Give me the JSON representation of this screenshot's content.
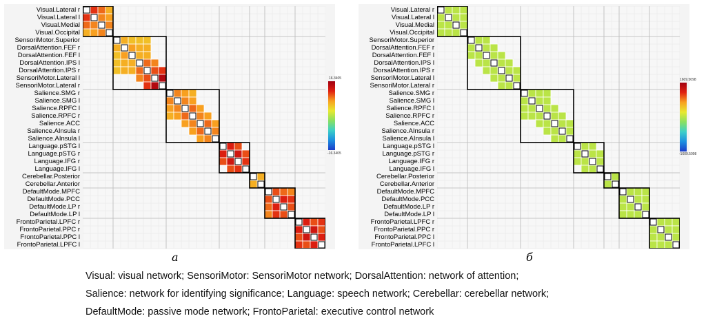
{
  "chart_data": [
    {
      "type": "heatmap",
      "panel": "a",
      "rows": [
        "Visual.Lateral r",
        "Visual.Lateral l",
        "Visual.Medial",
        "Visual.Occipital",
        "SensoriMotor.Superior",
        "DorsalAttention.FEF r",
        "DorsalAttention.FEF l",
        "DorsalAttention.IPS l",
        "DorsalAttention.IPS r",
        "SensoriMotor.Lateral l",
        "SensoriMotor.Lateral r",
        "Salience.SMG r",
        "Salience.SMG l",
        "Salience.RPFC l",
        "Salience.RPFC r",
        "Salience.ACC",
        "Salience.AInsula r",
        "Salience.AInsula l",
        "Language.pSTG l",
        "Language.pSTG r",
        "Language.IFG r",
        "Language.IFG l",
        "Cerebellar.Posterior",
        "Cerebellar.Anterior",
        "DefaultMode.MPFC",
        "DefaultMode.PCC",
        "DefaultMode.LP r",
        "DefaultMode.LP l",
        "FrontoParietal.LPFC r",
        "FrontoParietal.PPC r",
        "FrontoParietal.PPC l",
        "FrontoParietal.LPFC l"
      ],
      "blocks": [
        [
          0,
          3
        ],
        [
          4,
          10
        ],
        [
          11,
          17
        ],
        [
          18,
          21
        ],
        [
          22,
          23
        ],
        [
          24,
          27
        ],
        [
          28,
          31
        ]
      ],
      "color_scale": {
        "min": -16.3405,
        "max": 16.3405,
        "min_label": "-16.3405",
        "max_label": "16.3405",
        "colors": [
          "#1c3cc8",
          "#1c8fe0",
          "#3ccfc8",
          "#8ae060",
          "#e8e830",
          "#f8a020",
          "#e02010",
          "#a00010"
        ]
      },
      "cells": [
        [
          0,
          1,
          11
        ],
        [
          0,
          2,
          9
        ],
        [
          0,
          3,
          6
        ],
        [
          1,
          2,
          8
        ],
        [
          1,
          3,
          7
        ],
        [
          2,
          3,
          8
        ],
        [
          4,
          5,
          6
        ],
        [
          4,
          6,
          5
        ],
        [
          4,
          7,
          5
        ],
        [
          4,
          8,
          5
        ],
        [
          5,
          6,
          7
        ],
        [
          5,
          7,
          6
        ],
        [
          5,
          8,
          6
        ],
        [
          6,
          7,
          6
        ],
        [
          6,
          8,
          6
        ],
        [
          7,
          8,
          9
        ],
        [
          7,
          9,
          8
        ],
        [
          8,
          9,
          10
        ],
        [
          8,
          10,
          11
        ],
        [
          9,
          10,
          15
        ],
        [
          11,
          12,
          8
        ],
        [
          11,
          13,
          7
        ],
        [
          11,
          14,
          6
        ],
        [
          12,
          13,
          8
        ],
        [
          12,
          14,
          7
        ],
        [
          13,
          14,
          9
        ],
        [
          13,
          15,
          7
        ],
        [
          14,
          15,
          8
        ],
        [
          14,
          16,
          7
        ],
        [
          15,
          16,
          9
        ],
        [
          15,
          17,
          7
        ],
        [
          16,
          17,
          8
        ],
        [
          18,
          19,
          12
        ],
        [
          18,
          20,
          10
        ],
        [
          19,
          20,
          13
        ],
        [
          19,
          21,
          10
        ],
        [
          20,
          21,
          11
        ],
        [
          22,
          23,
          6
        ],
        [
          24,
          25,
          10
        ],
        [
          24,
          26,
          9
        ],
        [
          24,
          27,
          8
        ],
        [
          25,
          26,
          12
        ],
        [
          25,
          27,
          11
        ],
        [
          26,
          27,
          10
        ],
        [
          28,
          29,
          12
        ],
        [
          28,
          30,
          10
        ],
        [
          28,
          31,
          11
        ],
        [
          29,
          30,
          13
        ],
        [
          29,
          31,
          10
        ],
        [
          30,
          31,
          12
        ]
      ]
    },
    {
      "type": "heatmap",
      "panel": "б",
      "rows": [
        "Visual.Lateral r",
        "Visual.Lateral l",
        "Visual.Medial",
        "Visual.Occipital",
        "SensoriMotor.Superior",
        "DorsalAttention.FEF r",
        "DorsalAttention.FEF l",
        "DorsalAttention.IPS l",
        "DorsalAttention.IPS r",
        "SensoriMotor.Lateral l",
        "SensoriMotor.Lateral r",
        "Salience.SMG r",
        "Salience.SMG l",
        "Salience.RPFC l",
        "Salience.RPFC r",
        "Salience.ACC",
        "Salience.AInsula r",
        "Salience.AInsula l",
        "Language.pSTG l",
        "Language.pSTG r",
        "Language.IFG r",
        "Language.IFG l",
        "Cerebellar.Posterior",
        "Cerebellar.Anterior",
        "DefaultMode.MPFC",
        "DefaultMode.PCC",
        "DefaultMode.LP r",
        "DefaultMode.LP l",
        "FrontoParietal.LPFC r",
        "FrontoParietal.PPC r",
        "FrontoParietal.PPC l",
        "FrontoParietal.LPFC l"
      ],
      "blocks": [
        [
          0,
          3
        ],
        [
          4,
          10
        ],
        [
          11,
          17
        ],
        [
          18,
          21
        ],
        [
          22,
          23
        ],
        [
          24,
          27
        ],
        [
          28,
          31
        ]
      ],
      "color_scale": {
        "min": -1609.5098,
        "max": 1609.5098,
        "min_label": "-1609.5098",
        "max_label": "1609.5098",
        "colors": [
          "#1c3cc8",
          "#1c8fe0",
          "#3ccfc8",
          "#8ae060",
          "#e8e830",
          "#f8a020",
          "#e02010",
          "#a00010"
        ]
      },
      "cells": [
        [
          0,
          1,
          11
        ],
        [
          0,
          2,
          5
        ],
        [
          0,
          3,
          5
        ],
        [
          1,
          2,
          5
        ],
        [
          1,
          3,
          5
        ],
        [
          2,
          3,
          5
        ],
        [
          4,
          5,
          5
        ],
        [
          4,
          6,
          5
        ],
        [
          5,
          6,
          5
        ],
        [
          5,
          7,
          5
        ],
        [
          6,
          7,
          5
        ],
        [
          6,
          8,
          5
        ],
        [
          7,
          8,
          6
        ],
        [
          7,
          9,
          7
        ],
        [
          8,
          9,
          9
        ],
        [
          8,
          10,
          11
        ],
        [
          9,
          10,
          14
        ],
        [
          11,
          12,
          5
        ],
        [
          11,
          13,
          5
        ],
        [
          11,
          14,
          5
        ],
        [
          12,
          13,
          5
        ],
        [
          12,
          14,
          5
        ],
        [
          13,
          14,
          5
        ],
        [
          13,
          15,
          5
        ],
        [
          14,
          15,
          6
        ],
        [
          14,
          16,
          5
        ],
        [
          15,
          16,
          6
        ],
        [
          15,
          17,
          5
        ],
        [
          16,
          17,
          5
        ],
        [
          18,
          19,
          8
        ],
        [
          18,
          20,
          9
        ],
        [
          19,
          20,
          11
        ],
        [
          19,
          21,
          8
        ],
        [
          20,
          21,
          10
        ],
        [
          22,
          23,
          5
        ],
        [
          24,
          25,
          5
        ],
        [
          24,
          26,
          5
        ],
        [
          24,
          27,
          5
        ],
        [
          25,
          26,
          6
        ],
        [
          25,
          27,
          6
        ],
        [
          26,
          27,
          5
        ],
        [
          28,
          29,
          5
        ],
        [
          28,
          30,
          5
        ],
        [
          28,
          31,
          5
        ],
        [
          29,
          30,
          6
        ],
        [
          29,
          31,
          5
        ],
        [
          30,
          31,
          6
        ]
      ]
    }
  ],
  "captions": {
    "a": "a",
    "b": "б"
  },
  "legend": [
    "Visual: visual network; SensoriMotor: SensoriMotor network; DorsalAttention: network of attention;",
    "Salience: network for identifying significance; Language: speech network; Cerebellar: cerebellar network;",
    "DefaultMode: passive mode network; FrontoParietal: executive control network"
  ]
}
